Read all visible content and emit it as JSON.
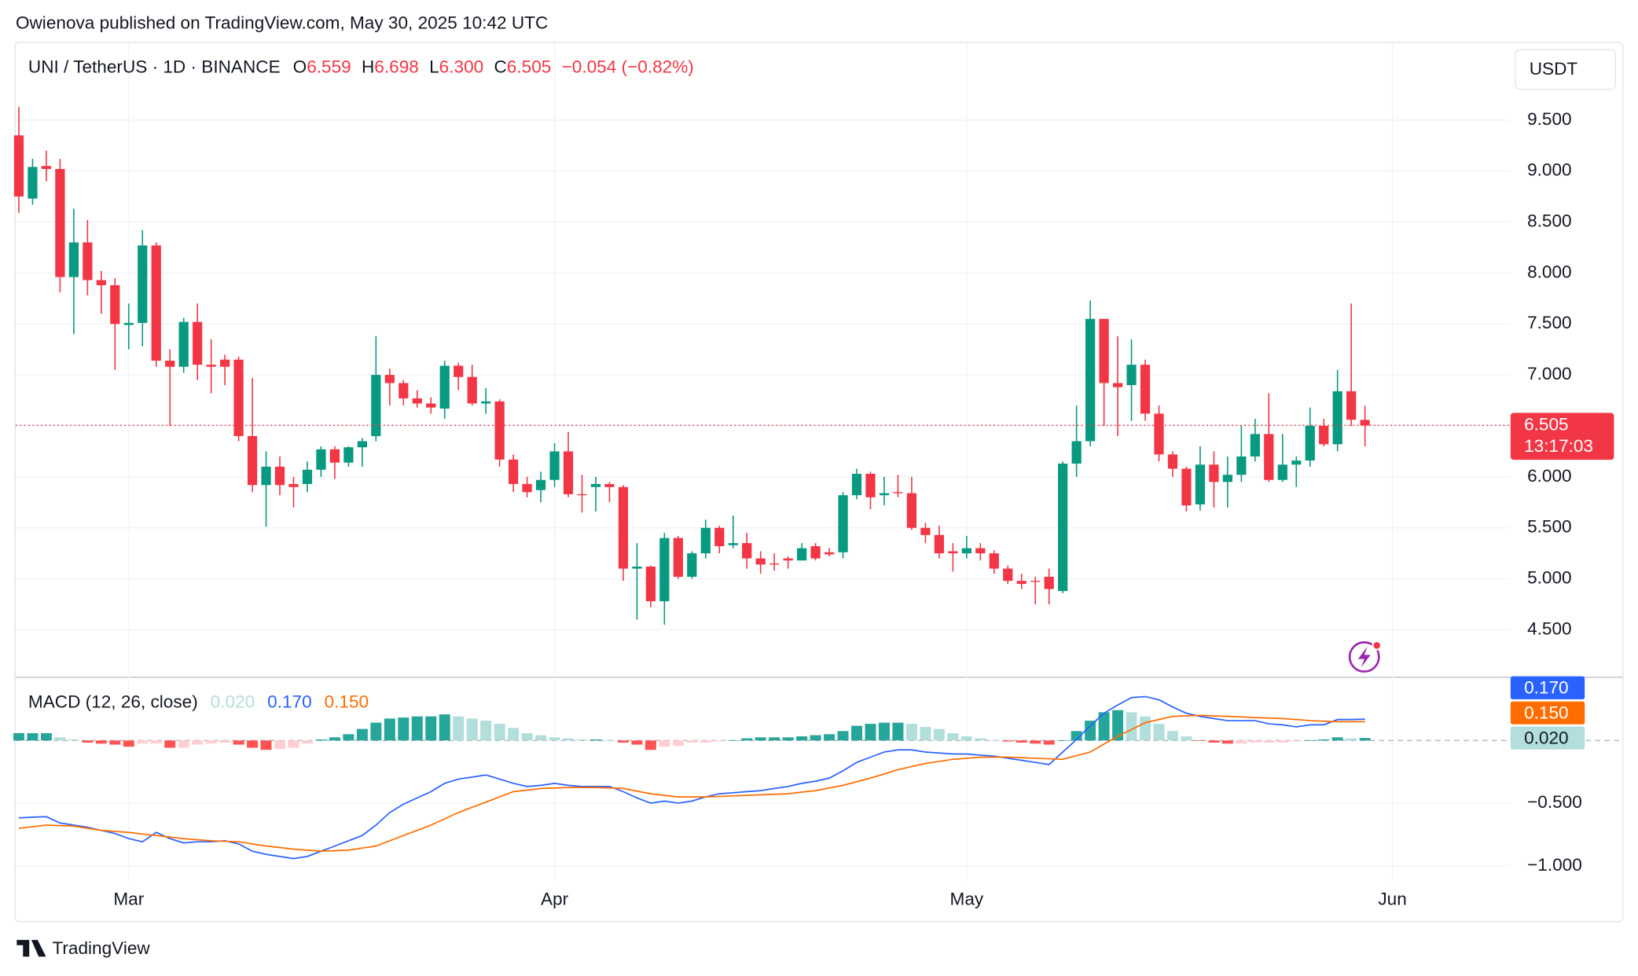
{
  "header": {
    "published": "Owienova published on TradingView.com, May 30, 2025 10:42 UTC",
    "brand": "TradingView"
  },
  "chart_data": [
    {
      "type": "candlestick",
      "title": "UNI / TetherUS · 1D · BINANCE",
      "ohlc_legend": [
        {
          "label": "O",
          "value": "6.559"
        },
        {
          "label": "H",
          "value": "6.698"
        },
        {
          "label": "L",
          "value": "6.300"
        },
        {
          "label": "C",
          "value": "6.505"
        }
      ],
      "change": "−0.054 (−0.82%)",
      "currency": "USDT",
      "last_price_label": "6.505",
      "countdown": "13:17:03",
      "up_color": "#089981",
      "down_color": "#f23645",
      "open": [
        9.35,
        8.73,
        9.05,
        9.02,
        7.96,
        8.3,
        7.93,
        7.88,
        7.49,
        7.51,
        8.27,
        7.14,
        7.08,
        7.52,
        7.1,
        7.15,
        7.15,
        6.4,
        5.92,
        6.1,
        5.93,
        5.93,
        6.07,
        6.27,
        6.14,
        6.29,
        6.4,
        7.0,
        6.92,
        6.77,
        6.72,
        6.67,
        7.09,
        6.98,
        6.72,
        6.74,
        6.17,
        5.93,
        5.87,
        5.97,
        6.25,
        5.83,
        5.9,
        5.93,
        5.9,
        5.1,
        5.12,
        4.78,
        5.4,
        5.02,
        5.25,
        5.5,
        5.33,
        5.35,
        5.2,
        5.15,
        5.2,
        5.18,
        5.32,
        5.26,
        5.26,
        5.82,
        6.03,
        5.82,
        5.85,
        5.84,
        5.5,
        5.43,
        5.27,
        5.25,
        5.3,
        5.25,
        5.1,
        4.98,
        4.98,
        5.02,
        4.88,
        6.13,
        6.35,
        7.55,
        6.92,
        6.9,
        7.1,
        6.62,
        6.22,
        6.08,
        5.73,
        6.12,
        5.95,
        6.02,
        6.2,
        6.42,
        5.97,
        6.12,
        6.16,
        6.5,
        6.32,
        6.84,
        6.559
      ],
      "high": [
        9.63,
        9.12,
        9.2,
        9.12,
        8.63,
        8.52,
        8.02,
        7.95,
        7.7,
        8.42,
        8.3,
        7.25,
        7.56,
        7.7,
        7.35,
        7.2,
        7.18,
        6.97,
        6.25,
        6.2,
        6.0,
        6.15,
        6.3,
        6.3,
        6.3,
        6.38,
        7.38,
        7.06,
        6.95,
        6.85,
        6.78,
        7.14,
        7.12,
        7.1,
        6.87,
        6.76,
        6.22,
        6.0,
        6.05,
        6.33,
        6.44,
        6.02,
        6.0,
        5.95,
        5.92,
        5.35,
        5.13,
        5.45,
        5.42,
        5.27,
        5.58,
        5.52,
        5.62,
        5.45,
        5.27,
        5.25,
        5.22,
        5.35,
        5.35,
        5.3,
        5.85,
        6.08,
        6.05,
        6.0,
        6.02,
        6.0,
        5.55,
        5.52,
        5.35,
        5.42,
        5.35,
        5.28,
        5.13,
        5.05,
        5.02,
        5.1,
        6.15,
        6.7,
        7.73,
        7.55,
        7.38,
        7.35,
        7.15,
        6.7,
        6.25,
        6.1,
        6.3,
        6.25,
        6.2,
        6.5,
        6.57,
        6.82,
        6.42,
        6.2,
        6.68,
        6.57,
        7.05,
        7.7,
        6.698
      ],
      "low": [
        8.59,
        8.67,
        8.9,
        7.81,
        7.4,
        7.78,
        7.6,
        7.05,
        7.25,
        7.28,
        7.08,
        6.5,
        7.02,
        6.95,
        6.82,
        6.9,
        6.35,
        5.85,
        5.51,
        5.82,
        5.7,
        5.85,
        6.0,
        5.98,
        6.1,
        6.1,
        6.35,
        6.7,
        6.7,
        6.68,
        6.62,
        6.57,
        6.85,
        6.7,
        6.62,
        6.1,
        5.85,
        5.8,
        5.75,
        5.9,
        5.8,
        5.65,
        5.66,
        5.75,
        4.98,
        4.6,
        4.72,
        4.55,
        5.0,
        5.0,
        5.2,
        5.25,
        5.3,
        5.1,
        5.05,
        5.08,
        5.1,
        5.18,
        5.18,
        5.22,
        5.2,
        5.78,
        5.68,
        5.72,
        5.8,
        5.48,
        5.35,
        5.2,
        5.07,
        5.2,
        5.18,
        5.05,
        4.95,
        4.9,
        4.75,
        4.75,
        4.86,
        6.0,
        6.3,
        6.5,
        6.4,
        6.55,
        6.55,
        6.15,
        6.0,
        5.66,
        5.67,
        5.7,
        5.7,
        5.95,
        6.15,
        5.95,
        5.95,
        5.9,
        6.1,
        6.3,
        6.25,
        6.5,
        6.3
      ],
      "close": [
        8.75,
        9.04,
        9.02,
        7.96,
        8.3,
        7.93,
        7.88,
        7.5,
        7.51,
        8.27,
        7.14,
        7.08,
        7.52,
        7.1,
        7.08,
        7.08,
        6.4,
        5.92,
        6.1,
        5.92,
        5.9,
        6.07,
        6.27,
        6.14,
        6.29,
        6.35,
        7.0,
        6.92,
        6.77,
        6.72,
        6.68,
        7.09,
        6.98,
        6.72,
        6.74,
        6.17,
        5.93,
        5.85,
        5.97,
        6.25,
        5.83,
        5.82,
        5.93,
        5.9,
        5.1,
        5.12,
        4.78,
        5.4,
        5.02,
        5.25,
        5.5,
        5.32,
        5.35,
        5.2,
        5.14,
        5.14,
        5.18,
        5.3,
        5.2,
        5.24,
        5.82,
        6.03,
        5.8,
        5.84,
        5.84,
        5.5,
        5.43,
        5.25,
        5.25,
        5.3,
        5.25,
        5.1,
        4.98,
        4.95,
        4.97,
        4.9,
        6.13,
        6.35,
        7.55,
        6.92,
        6.88,
        7.1,
        6.62,
        6.22,
        6.08,
        5.72,
        6.12,
        5.95,
        6.02,
        6.2,
        6.42,
        5.97,
        6.12,
        6.16,
        6.5,
        6.32,
        6.84,
        6.56,
        6.505
      ],
      "ylim": [
        4.039,
        10.268
      ],
      "yticks": [
        {
          "value": 4.5,
          "label": "4.500"
        },
        {
          "value": 5,
          "label": "5.000"
        },
        {
          "value": 5.5,
          "label": "5.500"
        },
        {
          "value": 6,
          "label": "6.000"
        },
        {
          "value": 6.5,
          "label": "6.500"
        },
        {
          "value": 7,
          "label": "7.000"
        },
        {
          "value": 7.5,
          "label": "7.500"
        },
        {
          "value": 8,
          "label": "8.000"
        },
        {
          "value": 8.5,
          "label": "8.500"
        },
        {
          "value": 9,
          "label": "9.000"
        },
        {
          "value": 9.5,
          "label": "9.500"
        }
      ],
      "xlim": [
        -0.23,
        108.52
      ],
      "xticks": [
        {
          "value": 8,
          "label": "Mar"
        },
        {
          "value": 39,
          "label": "Apr"
        },
        {
          "value": 69,
          "label": "May"
        },
        {
          "value": 100,
          "label": "Jun"
        }
      ],
      "grid": true
    },
    {
      "type": "macd",
      "title": "MACD (12, 26, close)",
      "ylim": [
        -1.133,
        0.508
      ],
      "yticks": [
        {
          "value": -1,
          "label": "−1.000"
        },
        {
          "value": -0.5,
          "label": "−0.500"
        }
      ],
      "grid": true,
      "series": [
        {
          "style": "histogram",
          "last_label": "0.020",
          "color": "#b2dfdb",
          "colors": {
            "grow_above": "#26a69a",
            "fall_above": "#b2dfdb",
            "grow_below": "#ffcdd2",
            "fall_below": "#ff5252"
          },
          "values": [
            0.058,
            0.058,
            0.058,
            0.025,
            0.008,
            -0.017,
            -0.025,
            -0.033,
            -0.05,
            -0.025,
            -0.025,
            -0.058,
            -0.058,
            -0.033,
            -0.025,
            -0.017,
            -0.033,
            -0.058,
            -0.075,
            -0.067,
            -0.058,
            -0.025,
            0.008,
            0.025,
            0.05,
            0.092,
            0.142,
            0.175,
            0.183,
            0.192,
            0.192,
            0.208,
            0.192,
            0.175,
            0.158,
            0.133,
            0.1,
            0.058,
            0.042,
            0.025,
            0.017,
            0.008,
            0.008,
            0.002,
            -0.017,
            -0.033,
            -0.075,
            -0.05,
            -0.042,
            -0.017,
            -0.017,
            -0.008,
            0.002,
            0.017,
            0.025,
            0.025,
            0.025,
            0.033,
            0.042,
            0.05,
            0.075,
            0.117,
            0.133,
            0.142,
            0.142,
            0.133,
            0.108,
            0.092,
            0.058,
            0.033,
            0.017,
            0.002,
            -0.008,
            -0.017,
            -0.025,
            -0.033,
            0.002,
            0.075,
            0.158,
            0.225,
            0.242,
            0.225,
            0.192,
            0.133,
            0.075,
            0.033,
            -0.002,
            -0.017,
            -0.025,
            -0.025,
            -0.017,
            -0.017,
            -0.017,
            -0.008,
            0.002,
            0.008,
            0.025,
            0.017,
            0.02
          ]
        },
        {
          "style": "line",
          "last_label": "0.170",
          "color": "#2962ff",
          "values": [
            -0.617,
            -0.612,
            -0.608,
            -0.658,
            -0.675,
            -0.692,
            -0.717,
            -0.742,
            -0.783,
            -0.808,
            -0.733,
            -0.783,
            -0.817,
            -0.808,
            -0.808,
            -0.8,
            -0.825,
            -0.883,
            -0.908,
            -0.925,
            -0.942,
            -0.925,
            -0.883,
            -0.842,
            -0.8,
            -0.758,
            -0.675,
            -0.575,
            -0.508,
            -0.458,
            -0.408,
            -0.342,
            -0.308,
            -0.292,
            -0.275,
            -0.308,
            -0.342,
            -0.367,
            -0.358,
            -0.342,
            -0.358,
            -0.367,
            -0.367,
            -0.367,
            -0.408,
            -0.458,
            -0.5,
            -0.483,
            -0.5,
            -0.483,
            -0.45,
            -0.425,
            -0.417,
            -0.408,
            -0.4,
            -0.383,
            -0.367,
            -0.342,
            -0.325,
            -0.3,
            -0.242,
            -0.175,
            -0.133,
            -0.092,
            -0.075,
            -0.075,
            -0.092,
            -0.1,
            -0.108,
            -0.108,
            -0.117,
            -0.125,
            -0.142,
            -0.158,
            -0.175,
            -0.192,
            -0.092,
            0.008,
            0.117,
            0.217,
            0.283,
            0.342,
            0.35,
            0.325,
            0.267,
            0.217,
            0.192,
            0.175,
            0.158,
            0.158,
            0.158,
            0.133,
            0.125,
            0.108,
            0.125,
            0.125,
            0.167,
            0.167,
            0.17
          ]
        },
        {
          "style": "line",
          "last_label": "0.150",
          "color": "#ff6d00",
          "values": [
            -0.7,
            -0.688,
            -0.675,
            -0.679,
            -0.683,
            -0.7,
            -0.717,
            -0.725,
            -0.733,
            -0.746,
            -0.758,
            -0.771,
            -0.783,
            -0.792,
            -0.8,
            -0.804,
            -0.808,
            -0.825,
            -0.842,
            -0.854,
            -0.867,
            -0.875,
            -0.883,
            -0.879,
            -0.875,
            -0.858,
            -0.842,
            -0.8,
            -0.758,
            -0.717,
            -0.675,
            -0.625,
            -0.575,
            -0.533,
            -0.492,
            -0.45,
            -0.408,
            -0.396,
            -0.383,
            -0.379,
            -0.375,
            -0.375,
            -0.375,
            -0.379,
            -0.383,
            -0.404,
            -0.425,
            -0.438,
            -0.45,
            -0.45,
            -0.45,
            -0.446,
            -0.442,
            -0.438,
            -0.433,
            -0.429,
            -0.425,
            -0.412,
            -0.4,
            -0.379,
            -0.358,
            -0.329,
            -0.3,
            -0.267,
            -0.233,
            -0.208,
            -0.183,
            -0.167,
            -0.15,
            -0.142,
            -0.133,
            -0.133,
            -0.133,
            -0.137,
            -0.142,
            -0.146,
            -0.15,
            -0.121,
            -0.092,
            -0.029,
            0.033,
            0.087,
            0.142,
            0.167,
            0.192,
            0.196,
            0.2,
            0.196,
            0.192,
            0.188,
            0.183,
            0.179,
            0.175,
            0.167,
            0.158,
            0.154,
            0.15,
            0.15,
            0.15
          ]
        }
      ]
    }
  ]
}
